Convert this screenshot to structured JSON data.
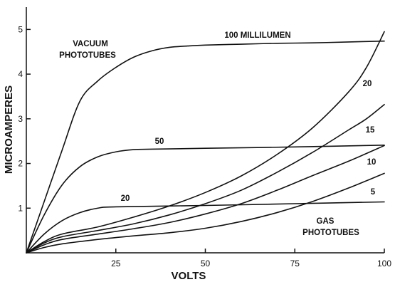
{
  "chart_data": {
    "type": "line",
    "xlabel": "VOLTS",
    "ylabel": "MICROAMPERES",
    "xlim": [
      0,
      100
    ],
    "ylim": [
      0,
      5.5
    ],
    "x_ticks": [
      25,
      50,
      75,
      100
    ],
    "y_ticks": [
      1,
      2,
      3,
      4,
      5
    ],
    "grid": false,
    "annotations": {
      "vacuum_group": [
        "VACUUM",
        "PHOTOTUBES"
      ],
      "gas_group": [
        "GAS",
        "PHOTOTUBES"
      ]
    },
    "series": [
      {
        "name": "100 MILLILUMEN",
        "group": "vacuum",
        "x": [
          0,
          5,
          10,
          15,
          20,
          25,
          30,
          35,
          40,
          45,
          50,
          60,
          70,
          80,
          90,
          100
        ],
        "y": [
          0,
          1.15,
          2.3,
          3.4,
          3.85,
          4.15,
          4.38,
          4.52,
          4.6,
          4.63,
          4.65,
          4.67,
          4.69,
          4.7,
          4.72,
          4.74
        ]
      },
      {
        "name": "50",
        "group": "vacuum",
        "x": [
          0,
          5,
          10,
          15,
          20,
          25,
          30,
          35,
          50,
          75,
          100
        ],
        "y": [
          0,
          0.85,
          1.52,
          1.93,
          2.15,
          2.26,
          2.31,
          2.32,
          2.34,
          2.37,
          2.41
        ]
      },
      {
        "name": "20",
        "group": "vacuum",
        "x": [
          0,
          5,
          10,
          15,
          20,
          25,
          50,
          75,
          100
        ],
        "y": [
          0,
          0.42,
          0.72,
          0.9,
          1.0,
          1.03,
          1.06,
          1.1,
          1.14
        ]
      },
      {
        "name": "20",
        "group": "gas",
        "x": [
          0,
          5,
          10,
          20,
          30,
          40,
          50,
          60,
          70,
          80,
          90,
          95,
          100
        ],
        "y": [
          0,
          0.25,
          0.42,
          0.58,
          0.8,
          1.05,
          1.35,
          1.72,
          2.2,
          2.8,
          3.6,
          4.15,
          4.95
        ]
      },
      {
        "name": "15",
        "group": "gas",
        "x": [
          0,
          5,
          10,
          20,
          30,
          40,
          50,
          60,
          70,
          80,
          90,
          95,
          100
        ],
        "y": [
          0,
          0.22,
          0.36,
          0.5,
          0.65,
          0.85,
          1.1,
          1.4,
          1.8,
          2.25,
          2.75,
          3.0,
          3.32
        ]
      },
      {
        "name": "10",
        "group": "gas",
        "x": [
          0,
          5,
          10,
          20,
          30,
          40,
          50,
          60,
          70,
          80,
          90,
          100
        ],
        "y": [
          0,
          0.18,
          0.3,
          0.42,
          0.54,
          0.68,
          0.87,
          1.1,
          1.4,
          1.73,
          2.05,
          2.4
        ]
      },
      {
        "name": "5",
        "group": "gas",
        "x": [
          0,
          5,
          10,
          20,
          30,
          40,
          50,
          60,
          70,
          80,
          90,
          100
        ],
        "y": [
          0,
          0.12,
          0.2,
          0.3,
          0.38,
          0.45,
          0.55,
          0.7,
          0.9,
          1.15,
          1.45,
          1.78
        ]
      }
    ]
  }
}
